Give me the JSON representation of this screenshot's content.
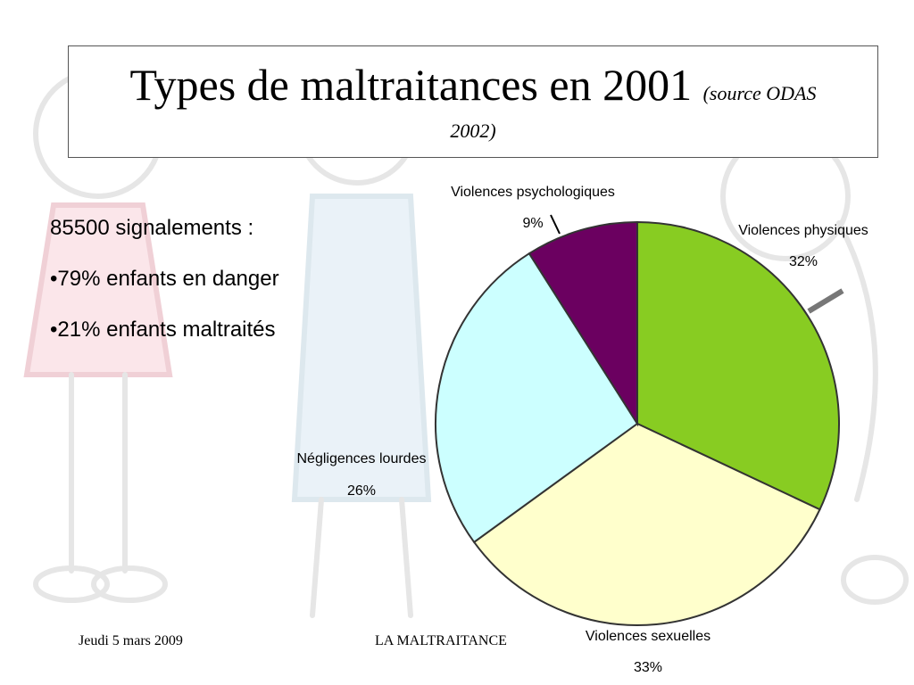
{
  "slide": {
    "title": "Types de maltraitances en 2001",
    "source_part1": "(source ODAS",
    "source_part2": "2002)",
    "facts": [
      "85500 signalements :",
      "•79% enfants en danger",
      "•21% enfants maltraités"
    ],
    "footer_date": "Jeudi 5 mars 2009",
    "footer_title": "LA MALTRAITANCE"
  },
  "chart_data": {
    "type": "pie",
    "categories": [
      "Violences physiques",
      "Violences sexuelles",
      "Négligences lourdes",
      "Violences psychologiques"
    ],
    "values": [
      32,
      33,
      26,
      9
    ],
    "value_labels": [
      "32%",
      "33%",
      "26%",
      "9%"
    ],
    "colors": [
      "#88cc22",
      "#ffffcc",
      "#ccffff",
      "#6b0060"
    ],
    "start_angle_deg": 0,
    "direction": "clockwise"
  }
}
